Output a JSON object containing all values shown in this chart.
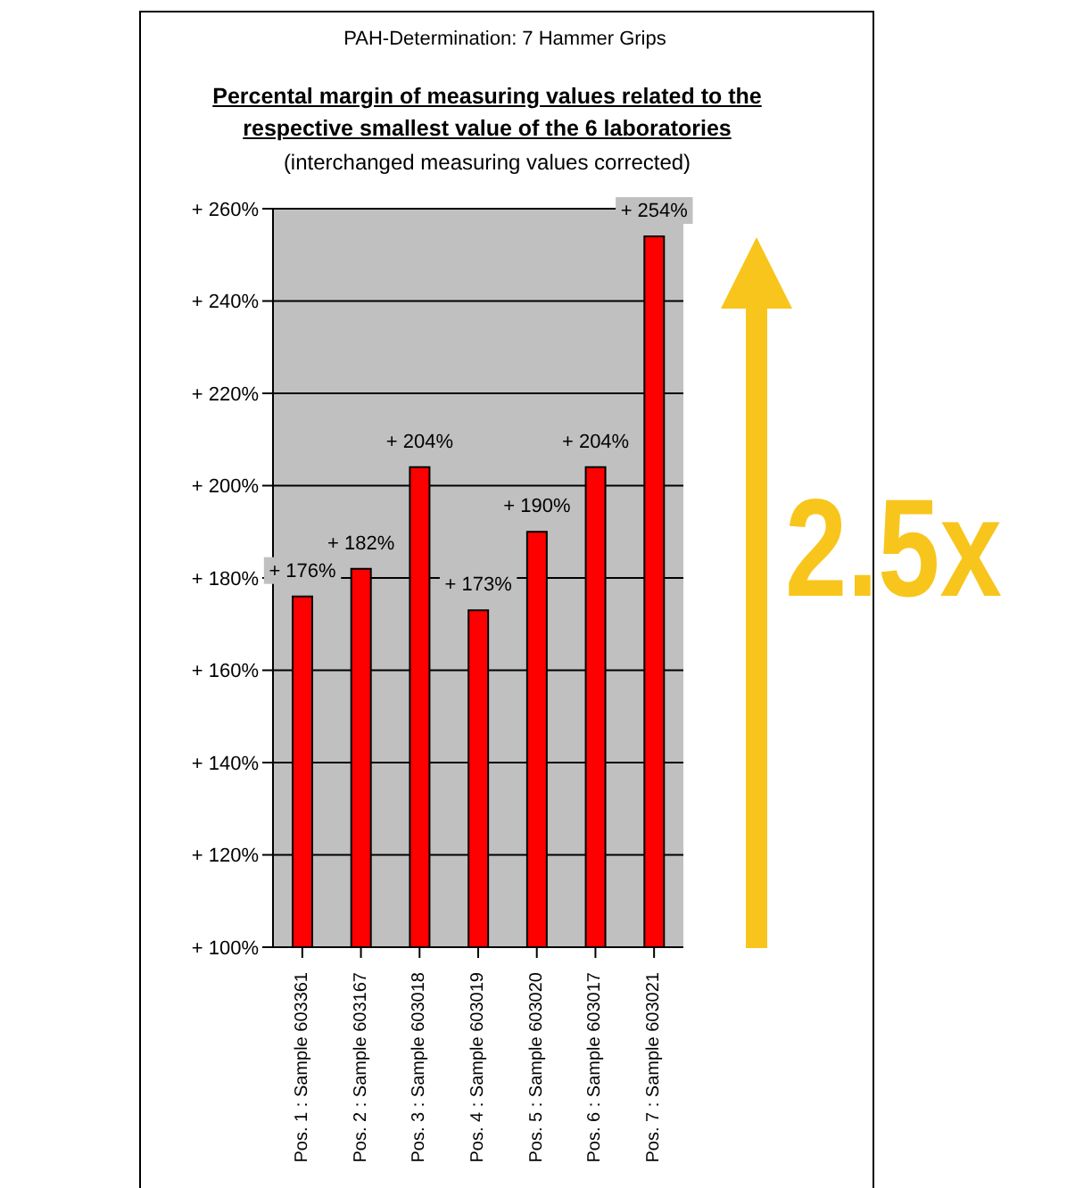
{
  "chart_data": {
    "type": "bar",
    "title": "PAH-Determination: 7 Hammer Grips",
    "subtitle": "Percental margin of measuring values related to the respective smallest value of the 6 laboratories",
    "annotations": [
      "(interchanged measuring values corrected)",
      "2.5x"
    ],
    "categories": [
      "Pos. 1 : Sample 603361",
      "Pos. 2 : Sample 603167",
      "Pos. 3 : Sample 603018",
      "Pos. 4 : Sample 603019",
      "Pos. 5 : Sample 603020",
      "Pos. 6 : Sample 603017",
      "Pos. 7 : Sample 603021"
    ],
    "values": [
      176,
      182,
      204,
      173,
      190,
      204,
      254
    ],
    "value_labels": [
      "+ 176%",
      "+ 182%",
      "+ 204%",
      "+ 173%",
      "+ 190%",
      "+ 204%",
      "+ 254%"
    ],
    "color": "#ff0000",
    "ylim": [
      100,
      260
    ],
    "yticks": [
      {
        "value": 100,
        "label": "+ 100%"
      },
      {
        "value": 120,
        "label": "+ 120%"
      },
      {
        "value": 140,
        "label": "+ 140%"
      },
      {
        "value": 160,
        "label": "+ 160%"
      },
      {
        "value": 180,
        "label": "+ 180%"
      },
      {
        "value": 200,
        "label": "+ 200%"
      },
      {
        "value": 220,
        "label": "+ 220%"
      },
      {
        "value": 240,
        "label": "+ 240%"
      },
      {
        "value": 260,
        "label": "+ 260%"
      }
    ],
    "grid": "y",
    "legend": false
  }
}
